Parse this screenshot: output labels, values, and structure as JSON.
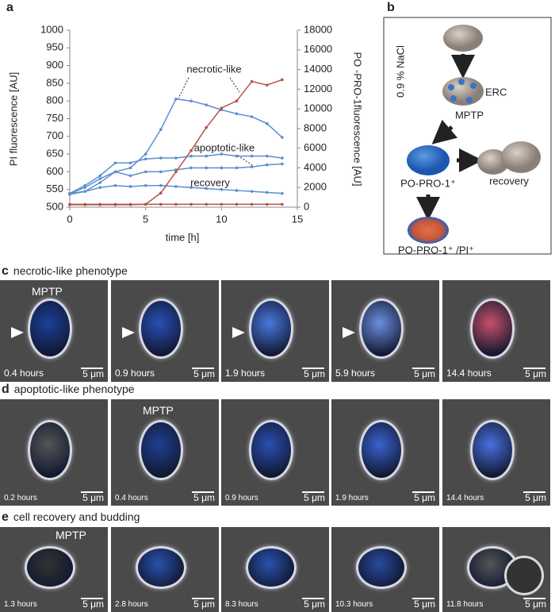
{
  "panel_labels": [
    "a",
    "b"
  ],
  "chart_data": {
    "type": "line",
    "ylabel": "PI fluorescence [AU]",
    "y2label": "PO -PRO-1fluorescence [AU]",
    "xlabel": "time [h]",
    "xlim": [
      0,
      15
    ],
    "xticks": [
      0,
      5,
      10,
      15
    ],
    "ylim": [
      500,
      1000
    ],
    "yticks": [
      500,
      550,
      600,
      650,
      700,
      750,
      800,
      850,
      900,
      950,
      1000
    ],
    "y2lim": [
      0,
      18000
    ],
    "y2ticks": [
      0,
      2000,
      4000,
      6000,
      8000,
      10000,
      12000,
      14000,
      16000,
      18000
    ],
    "x": [
      0,
      1,
      2,
      3,
      4,
      5,
      6,
      7,
      8,
      9,
      10,
      11,
      12,
      13,
      14
    ],
    "series": [
      {
        "color": "#5b8fd0",
        "axis": "y2",
        "values": [
          1300,
          1600,
          2500,
          3600,
          4000,
          5400,
          7900,
          11000,
          10800,
          10400,
          9900,
          9500,
          9200,
          8500,
          7100
        ]
      },
      {
        "color": "#5b8fd0",
        "axis": "y2",
        "values": [
          1400,
          2200,
          3200,
          4500,
          4500,
          4900,
          5000,
          5000,
          5200,
          5200,
          5400,
          5200,
          5200,
          5200,
          5000
        ]
      },
      {
        "color": "#5b8fd0",
        "axis": "y2",
        "values": [
          1400,
          2000,
          2900,
          3600,
          3200,
          3600,
          3600,
          3800,
          4000,
          4000,
          4000,
          4000,
          4100,
          4300,
          4400
        ]
      },
      {
        "color": "#5b8fd0",
        "axis": "y2",
        "values": [
          1400,
          1600,
          2000,
          2200,
          2100,
          2200,
          2200,
          2100,
          2000,
          1900,
          1800,
          1700,
          1600,
          1500,
          1400
        ]
      },
      {
        "color": "#b5524a",
        "values": [
          507,
          507,
          507,
          507,
          507,
          508,
          540,
          600,
          660,
          725,
          780,
          800,
          855,
          845,
          860
        ]
      },
      {
        "color": "#b5524a",
        "values": [
          508,
          508,
          508,
          508,
          508,
          508,
          508,
          508,
          508,
          508,
          508,
          508,
          508,
          508,
          508
        ]
      }
    ],
    "annotations": [
      "necrotic-like",
      "apoptotic-like",
      "recovery"
    ]
  },
  "diagram": {
    "condition": "0.9 % NaCl",
    "erc": "ERC",
    "mptp": "MPTP",
    "popro": "PO-PRO-1⁺",
    "recovery": "recovery",
    "double": "PO-PRO-1⁺ /PI⁺"
  },
  "panels": [
    {
      "letter": "c",
      "title": "necrotic-like phenotype",
      "frames": [
        {
          "time": "0.4 hours",
          "scale": "5 μm",
          "label": "MPTP"
        },
        {
          "time": "0.9 hours",
          "scale": "5 μm"
        },
        {
          "time": "1.9 hours",
          "scale": "5 μm"
        },
        {
          "time": "5.9 hours",
          "scale": "5 μm"
        },
        {
          "time": "14.4 hours",
          "scale": "5 μm"
        }
      ]
    },
    {
      "letter": "d",
      "title": "apoptotic-like phenotype",
      "frames": [
        {
          "time": "0.2 hours",
          "scale": "5 μm"
        },
        {
          "time": "0.4 hours",
          "scale": "5 μm",
          "label": "MPTP"
        },
        {
          "time": "0.9 hours",
          "scale": "5 μm"
        },
        {
          "time": "1.9 hours",
          "scale": "5 μm"
        },
        {
          "time": "14.4 hours",
          "scale": "5 μm"
        }
      ]
    },
    {
      "letter": "e",
      "title": "cell recovery and budding",
      "frames": [
        {
          "time": "1.3 hours",
          "scale": "5 μm",
          "label": "MPTP"
        },
        {
          "time": "2.8 hours",
          "scale": "5 μm"
        },
        {
          "time": "8.3 hours",
          "scale": "5 μm"
        },
        {
          "time": "10.3 hours",
          "scale": "5 μm"
        },
        {
          "time": "11.8 hours",
          "scale": "5 μm"
        }
      ]
    }
  ]
}
